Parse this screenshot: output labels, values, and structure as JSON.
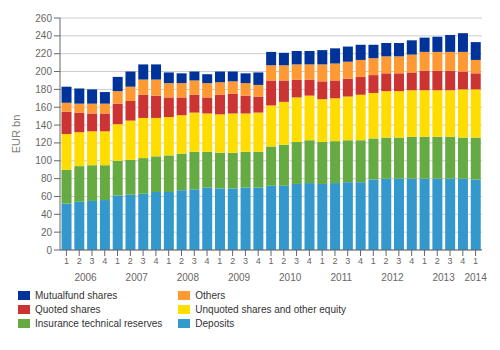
{
  "chart_data": {
    "type": "bar",
    "stacked": true,
    "ylabel": "EUR bn",
    "ylim": [
      0,
      260
    ],
    "yticks": [
      0,
      20,
      40,
      60,
      80,
      100,
      120,
      140,
      160,
      180,
      200,
      220,
      240,
      260
    ],
    "grid": true,
    "legend": "bottom",
    "categories": [
      "1",
      "2",
      "3",
      "4",
      "1",
      "2",
      "3",
      "4",
      "1",
      "2",
      "3",
      "4",
      "1",
      "2",
      "3",
      "4",
      "1",
      "2",
      "3",
      "4",
      "1",
      "2",
      "3",
      "4",
      "1",
      "2",
      "3",
      "4",
      "1",
      "2",
      "3",
      "4",
      "1"
    ],
    "annotations": [
      "2006",
      "2007",
      "2008",
      "2009",
      "2010",
      "2011",
      "2012",
      "2013",
      "2014"
    ],
    "series": [
      {
        "name": "Deposits",
        "color": "#3399CC",
        "values": [
          52,
          54,
          55,
          56,
          61,
          62,
          63,
          65,
          65,
          67,
          68,
          70,
          69,
          69,
          70,
          70,
          72,
          72,
          74,
          75,
          74,
          75,
          76,
          76,
          79,
          80,
          80,
          80,
          80,
          80,
          80,
          80,
          79
        ]
      },
      {
        "name": "Insurance technical reserves",
        "color": "#66AA44",
        "values": [
          38,
          40,
          40,
          39,
          39,
          39,
          40,
          40,
          41,
          41,
          42,
          40,
          40,
          40,
          40,
          40,
          44,
          46,
          47,
          48,
          47,
          47,
          47,
          47,
          46,
          46,
          46,
          47,
          47,
          47,
          47,
          46,
          47
        ]
      },
      {
        "name": "Unquoted shares and other equity",
        "color": "#FFDD00",
        "values": [
          40,
          38,
          38,
          38,
          41,
          44,
          45,
          43,
          43,
          43,
          44,
          43,
          43,
          44,
          43,
          44,
          46,
          48,
          50,
          50,
          48,
          48,
          49,
          51,
          51,
          52,
          52,
          52,
          52,
          52,
          52,
          54,
          54
        ]
      },
      {
        "name": "Quoted shares",
        "color": "#CC3333",
        "values": [
          25,
          22,
          20,
          20,
          23,
          22,
          26,
          25,
          22,
          20,
          20,
          18,
          22,
          22,
          20,
          18,
          28,
          24,
          20,
          18,
          20,
          20,
          20,
          20,
          20,
          20,
          20,
          20,
          22,
          22,
          22,
          20,
          18
        ]
      },
      {
        "name": "Others",
        "color": "#FF9933",
        "values": [
          10,
          10,
          11,
          11,
          14,
          16,
          17,
          18,
          16,
          16,
          16,
          16,
          14,
          14,
          14,
          13,
          17,
          17,
          17,
          17,
          19,
          19,
          19,
          19,
          19,
          19,
          19,
          20,
          21,
          21,
          21,
          22,
          15
        ]
      },
      {
        "name": "Mutualfund shares",
        "color": "#003399",
        "values": [
          18,
          17,
          16,
          13,
          16,
          17,
          17,
          17,
          12,
          11,
          10,
          10,
          12,
          11,
          11,
          14,
          15,
          14,
          15,
          15,
          16,
          17,
          17,
          17,
          15,
          15,
          15,
          16,
          16,
          17,
          19,
          21,
          20
        ]
      }
    ]
  }
}
